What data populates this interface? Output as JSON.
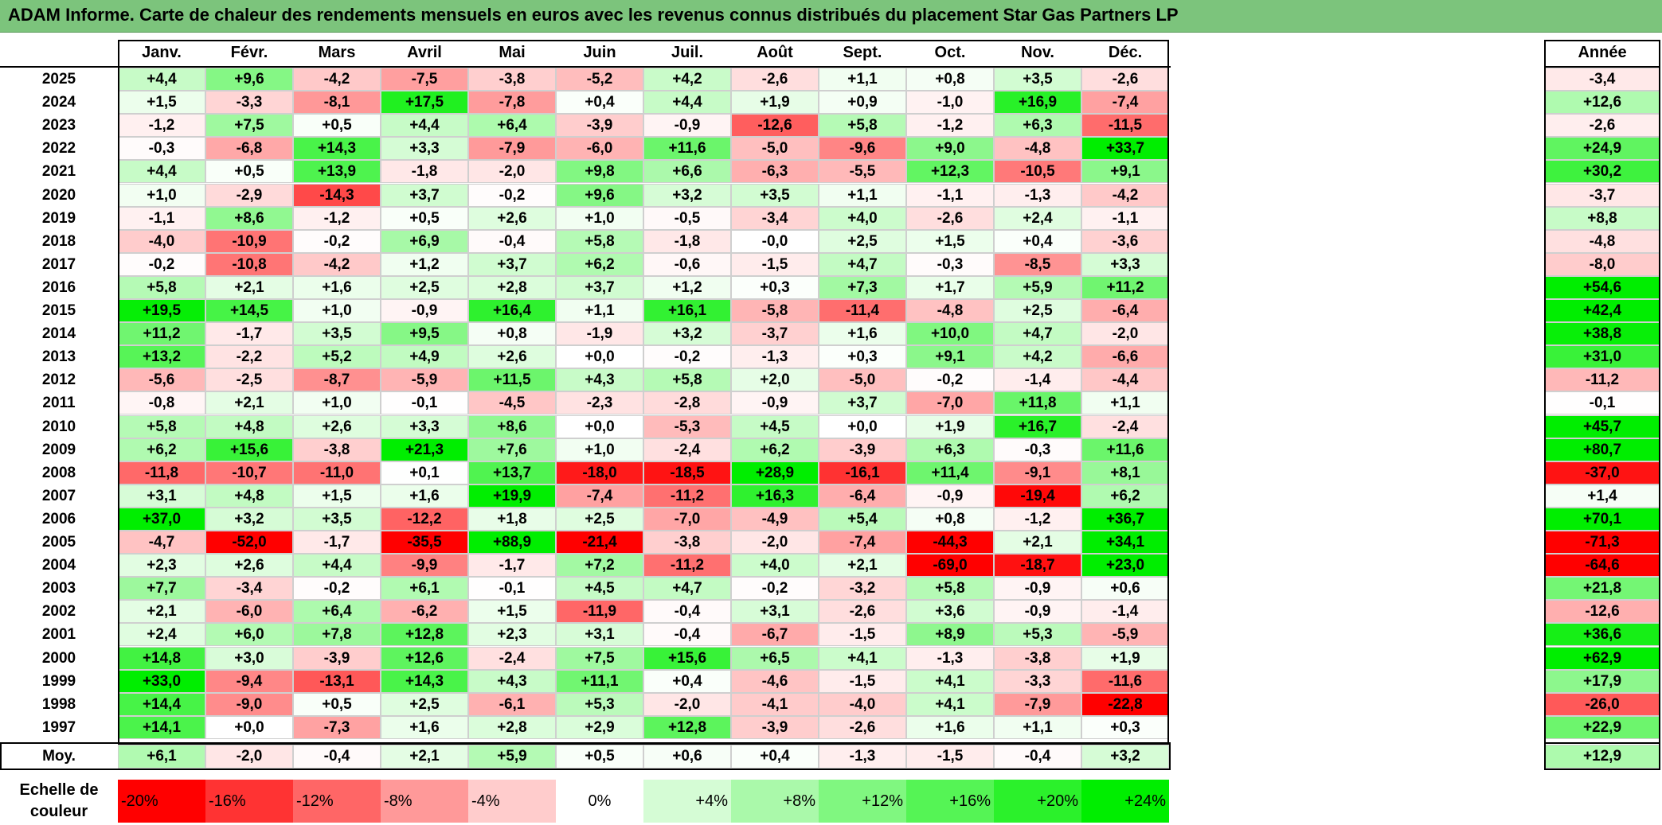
{
  "title": "ADAM Informe. Carte de chaleur des rendements mensuels en euros avec les revenus connus distribués du placement Star Gas Partners LP",
  "chart_data": {
    "type": "heatmap",
    "title": "ADAM Informe. Carte de chaleur des rendements mensuels en euros avec les revenus connus distribués du placement Star Gas Partners LP",
    "columns": [
      "Janv.",
      "Févr.",
      "Mars",
      "Avril",
      "Mai",
      "Juin",
      "Juil.",
      "Août",
      "Sept.",
      "Oct.",
      "Nov.",
      "Déc."
    ],
    "year_column_label": "Année",
    "average_row_label": "Moy.",
    "rows": [
      {
        "year": "2025",
        "values": [
          "+4,4",
          "+9,6",
          "-4,2",
          "-7,5",
          "-3,8",
          "-5,2",
          "+4,2",
          "-2,6",
          "+1,1",
          "+0,8",
          "+3,5",
          "-2,6"
        ],
        "annual": "-3,4"
      },
      {
        "year": "2024",
        "values": [
          "+1,5",
          "-3,3",
          "-8,1",
          "+17,5",
          "-7,8",
          "+0,4",
          "+4,4",
          "+1,9",
          "+0,9",
          "-1,0",
          "+16,9",
          "-7,4"
        ],
        "annual": "+12,6"
      },
      {
        "year": "2023",
        "values": [
          "-1,2",
          "+7,5",
          "+0,5",
          "+4,4",
          "+6,4",
          "-3,9",
          "-0,9",
          "-12,6",
          "+5,8",
          "-1,2",
          "+6,3",
          "-11,5"
        ],
        "annual": "-2,6"
      },
      {
        "year": "2022",
        "values": [
          "-0,3",
          "-6,8",
          "+14,3",
          "+3,3",
          "-7,9",
          "-6,0",
          "+11,6",
          "-5,0",
          "-9,6",
          "+9,0",
          "-4,8",
          "+33,7"
        ],
        "annual": "+24,9"
      },
      {
        "year": "2021",
        "values": [
          "+4,4",
          "+0,5",
          "+13,9",
          "-1,8",
          "-2,0",
          "+9,8",
          "+6,6",
          "-6,3",
          "-5,5",
          "+12,3",
          "-10,5",
          "+9,1"
        ],
        "annual": "+30,2"
      },
      {
        "year": "2020",
        "values": [
          "+1,0",
          "-2,9",
          "-14,3",
          "+3,7",
          "-0,2",
          "+9,6",
          "+3,2",
          "+3,5",
          "+1,1",
          "-1,1",
          "-1,3",
          "-4,2"
        ],
        "annual": "-3,7"
      },
      {
        "year": "2019",
        "values": [
          "-1,1",
          "+8,6",
          "-1,2",
          "+0,5",
          "+2,6",
          "+1,0",
          "-0,5",
          "-3,4",
          "+4,0",
          "-2,6",
          "+2,4",
          "-1,1"
        ],
        "annual": "+8,8"
      },
      {
        "year": "2018",
        "values": [
          "-4,0",
          "-10,9",
          "-0,2",
          "+6,9",
          "-0,4",
          "+5,8",
          "-1,8",
          "-0,0",
          "+2,5",
          "+1,5",
          "+0,4",
          "-3,6"
        ],
        "annual": "-4,8"
      },
      {
        "year": "2017",
        "values": [
          "-0,2",
          "-10,8",
          "-4,2",
          "+1,2",
          "+3,7",
          "+6,2",
          "-0,6",
          "-1,5",
          "+4,7",
          "-0,3",
          "-8,5",
          "+3,3"
        ],
        "annual": "-8,0"
      },
      {
        "year": "2016",
        "values": [
          "+5,8",
          "+2,1",
          "+1,6",
          "+2,5",
          "+2,8",
          "+3,7",
          "+1,2",
          "+0,3",
          "+7,3",
          "+1,7",
          "+5,9",
          "+11,2"
        ],
        "annual": "+54,6"
      },
      {
        "year": "2015",
        "values": [
          "+19,5",
          "+14,5",
          "+1,0",
          "-0,9",
          "+16,4",
          "+1,1",
          "+16,1",
          "-5,8",
          "-11,4",
          "-4,8",
          "+2,5",
          "-6,4"
        ],
        "annual": "+42,4"
      },
      {
        "year": "2014",
        "values": [
          "+11,2",
          "-1,7",
          "+3,5",
          "+9,5",
          "+0,8",
          "-1,9",
          "+3,2",
          "-3,7",
          "+1,6",
          "+10,0",
          "+4,7",
          "-2,0"
        ],
        "annual": "+38,8"
      },
      {
        "year": "2013",
        "values": [
          "+13,2",
          "-2,2",
          "+5,2",
          "+4,9",
          "+2,6",
          "+0,0",
          "-0,2",
          "-1,3",
          "+0,3",
          "+9,1",
          "+4,2",
          "-6,6"
        ],
        "annual": "+31,0"
      },
      {
        "year": "2012",
        "values": [
          "-5,6",
          "-2,5",
          "-8,7",
          "-5,9",
          "+11,5",
          "+4,3",
          "+5,8",
          "+2,0",
          "-5,0",
          "-0,2",
          "-1,4",
          "-4,4"
        ],
        "annual": "-11,2"
      },
      {
        "year": "2011",
        "values": [
          "-0,8",
          "+2,1",
          "+1,0",
          "-0,1",
          "-4,5",
          "-2,3",
          "-2,8",
          "-0,9",
          "+3,7",
          "-7,0",
          "+11,8",
          "+1,1"
        ],
        "annual": "-0,1"
      },
      {
        "year": "2010",
        "values": [
          "+5,8",
          "+4,8",
          "+2,6",
          "+3,3",
          "+8,6",
          "+0,0",
          "-5,3",
          "+4,5",
          "+0,0",
          "+1,9",
          "+16,7",
          "-2,4"
        ],
        "annual": "+45,7"
      },
      {
        "year": "2009",
        "values": [
          "+6,2",
          "+15,6",
          "-3,8",
          "+21,3",
          "+7,6",
          "+1,0",
          "-2,4",
          "+6,2",
          "-3,9",
          "+6,3",
          "-0,3",
          "+11,6"
        ],
        "annual": "+80,7"
      },
      {
        "year": "2008",
        "values": [
          "-11,8",
          "-10,7",
          "-11,0",
          "+0,1",
          "+13,7",
          "-18,0",
          "-18,5",
          "+28,9",
          "-16,1",
          "+11,4",
          "-9,1",
          "+8,1"
        ],
        "annual": "-37,0"
      },
      {
        "year": "2007",
        "values": [
          "+3,1",
          "+4,8",
          "+1,5",
          "+1,6",
          "+19,9",
          "-7,4",
          "-11,2",
          "+16,3",
          "-6,4",
          "-0,9",
          "-19,4",
          "+6,2"
        ],
        "annual": "+1,4"
      },
      {
        "year": "2006",
        "values": [
          "+37,0",
          "+3,2",
          "+3,5",
          "-12,2",
          "+1,8",
          "+2,5",
          "-7,0",
          "-4,9",
          "+5,4",
          "+0,8",
          "-1,2",
          "+36,7"
        ],
        "annual": "+70,1"
      },
      {
        "year": "2005",
        "values": [
          "-4,7",
          "-52,0",
          "-1,7",
          "-35,5",
          "+88,9",
          "-21,4",
          "-3,8",
          "-2,0",
          "-7,4",
          "-44,3",
          "+2,1",
          "+34,1"
        ],
        "annual": "-71,3"
      },
      {
        "year": "2004",
        "values": [
          "+2,3",
          "+2,6",
          "+4,4",
          "-9,9",
          "-1,7",
          "+7,2",
          "-11,2",
          "+4,0",
          "+2,1",
          "-69,0",
          "-18,7",
          "+23,0"
        ],
        "annual": "-64,6"
      },
      {
        "year": "2003",
        "values": [
          "+7,7",
          "-3,4",
          "-0,2",
          "+6,1",
          "-0,1",
          "+4,5",
          "+4,7",
          "-0,2",
          "-3,2",
          "+5,8",
          "-0,9",
          "+0,6"
        ],
        "annual": "+21,8"
      },
      {
        "year": "2002",
        "values": [
          "+2,1",
          "-6,0",
          "+6,4",
          "-6,2",
          "+1,5",
          "-11,9",
          "-0,4",
          "+3,1",
          "-2,6",
          "+3,6",
          "-0,9",
          "-1,4"
        ],
        "annual": "-12,6"
      },
      {
        "year": "2001",
        "values": [
          "+2,4",
          "+6,0",
          "+7,8",
          "+12,8",
          "+2,3",
          "+3,1",
          "-0,4",
          "-6,7",
          "-1,5",
          "+8,9",
          "+5,3",
          "-5,9"
        ],
        "annual": "+36,6"
      },
      {
        "year": "2000",
        "values": [
          "+14,8",
          "+3,0",
          "-3,9",
          "+12,6",
          "-2,4",
          "+7,5",
          "+15,6",
          "+6,5",
          "+4,1",
          "-1,3",
          "-3,8",
          "+1,9"
        ],
        "annual": "+62,9"
      },
      {
        "year": "1999",
        "values": [
          "+33,0",
          "-9,4",
          "-13,1",
          "+14,3",
          "+4,3",
          "+11,1",
          "+0,4",
          "-4,6",
          "-1,5",
          "+4,1",
          "-3,3",
          "-11,6"
        ],
        "annual": "+17,9"
      },
      {
        "year": "1998",
        "values": [
          "+14,4",
          "-9,0",
          "+0,5",
          "+2,5",
          "-6,1",
          "+5,3",
          "-2,0",
          "-4,1",
          "-4,0",
          "+4,1",
          "-7,9",
          "-22,8"
        ],
        "annual": "-26,0"
      },
      {
        "year": "1997",
        "values": [
          "+14,1",
          "+0,0",
          "-7,3",
          "+1,6",
          "+2,8",
          "+2,9",
          "+12,8",
          "-3,9",
          "-2,6",
          "+1,6",
          "+1,1",
          "+0,3"
        ],
        "annual": "+22,9"
      }
    ],
    "averages": {
      "values": [
        "+6,1",
        "-2,0",
        "-0,4",
        "+2,1",
        "+5,9",
        "+0,5",
        "+0,6",
        "+0,4",
        "-1,3",
        "-1,5",
        "-0,4",
        "+3,2"
      ],
      "annual": "+12,9"
    },
    "color_scale": {
      "label": "Echelle de couleur",
      "steps": [
        "-20%",
        "-16%",
        "-12%",
        "-8%",
        "-4%",
        "0%",
        "+4%",
        "+8%",
        "+12%",
        "+16%",
        "+20%",
        "+24%"
      ],
      "negative_color": "#ff0000",
      "neutral_color": "#ffffff",
      "positive_color": "#00ee00"
    }
  }
}
